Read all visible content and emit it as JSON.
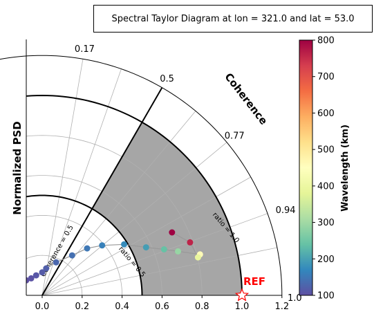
{
  "chart_data": {
    "type": "scatter",
    "title": "Spectral Taylor Diagram at lon = 321.0 and lat = 53.0",
    "ylabel": "Normalized PSD",
    "angle_label": "Coherence",
    "x_ticks": [
      "0.0",
      "0.2",
      "0.4",
      "0.6",
      "0.8",
      "1.0",
      "1.2"
    ],
    "xlim": [
      -0.08,
      1.2
    ],
    "coherence_ticks": [
      {
        "value": 0.17,
        "label": "0.17"
      },
      {
        "value": 0.5,
        "label": "0.5"
      },
      {
        "value": 0.77,
        "label": "0.77"
      },
      {
        "value": 0.94,
        "label": "0.94"
      },
      {
        "value": 1.0,
        "label": "1.0"
      }
    ],
    "ratio_arcs": [
      {
        "value": 0.5,
        "label": "ratio = 0.5"
      },
      {
        "value": 1.0,
        "label": "ratio = 1.0"
      }
    ],
    "coherence_line": {
      "value": 0.5,
      "label": "Coherence = 0.5"
    },
    "grid_radii": [
      0.2,
      0.4,
      0.6,
      0.8,
      1.0
    ],
    "ref_label": "REF",
    "colorbar": {
      "label": "Wavelength (km)",
      "ticks": [
        "100",
        "200",
        "300",
        "400",
        "500",
        "600",
        "700",
        "800"
      ],
      "range": [
        100,
        800
      ]
    },
    "points": [
      {
        "x": -0.08,
        "y": 0.075,
        "wavelength": 100
      },
      {
        "x": -0.055,
        "y": 0.085,
        "wavelength": 105
      },
      {
        "x": -0.03,
        "y": 0.1,
        "wavelength": 110
      },
      {
        "x": 0.0,
        "y": 0.115,
        "wavelength": 115
      },
      {
        "x": 0.02,
        "y": 0.135,
        "wavelength": 120
      },
      {
        "x": 0.07,
        "y": 0.165,
        "wavelength": 130
      },
      {
        "x": 0.15,
        "y": 0.2,
        "wavelength": 140
      },
      {
        "x": 0.225,
        "y": 0.235,
        "wavelength": 150
      },
      {
        "x": 0.3,
        "y": 0.25,
        "wavelength": 160
      },
      {
        "x": 0.41,
        "y": 0.255,
        "wavelength": 175
      },
      {
        "x": 0.52,
        "y": 0.24,
        "wavelength": 195
      },
      {
        "x": 0.61,
        "y": 0.23,
        "wavelength": 240
      },
      {
        "x": 0.68,
        "y": 0.22,
        "wavelength": 290
      },
      {
        "x": 0.79,
        "y": 0.205,
        "wavelength": 460
      },
      {
        "x": 0.78,
        "y": 0.19,
        "wavelength": 390
      },
      {
        "x": 0.74,
        "y": 0.265,
        "wavelength": 760
      },
      {
        "x": 0.65,
        "y": 0.315,
        "wavelength": 800
      }
    ]
  }
}
